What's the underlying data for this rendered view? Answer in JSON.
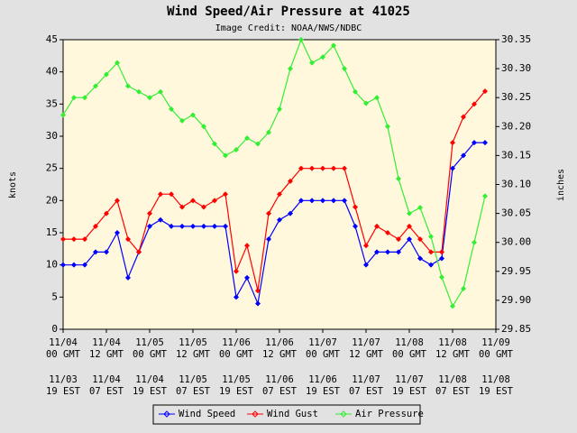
{
  "chart_data": {
    "type": "line",
    "title": "Wind Speed/Air Pressure at 41025",
    "subtitle": "Image Credit: NOAA/NWS/NDBC",
    "ylabel": "knots",
    "y2label": "inches",
    "x": [
      0,
      3,
      6,
      9,
      12,
      15,
      18,
      21,
      24,
      27,
      30,
      33,
      36,
      39,
      42,
      45,
      48,
      51,
      54,
      57,
      60,
      63,
      66,
      69,
      72,
      75,
      78,
      81,
      84,
      87,
      90,
      93,
      96,
      99,
      102,
      105,
      108,
      111,
      114,
      117
    ],
    "xlim": [
      0,
      120
    ],
    "xticks": [
      {
        "value": 0,
        "label": "11/04\n00 GMT",
        "label2": "11/03\n19 EST"
      },
      {
        "value": 12,
        "label": "11/04\n12 GMT",
        "label2": "11/04\n07 EST"
      },
      {
        "value": 24,
        "label": "11/05\n00 GMT",
        "label2": "11/04\n19 EST"
      },
      {
        "value": 36,
        "label": "11/05\n12 GMT",
        "label2": "11/05\n07 EST"
      },
      {
        "value": 48,
        "label": "11/06\n00 GMT",
        "label2": "11/05\n19 EST"
      },
      {
        "value": 60,
        "label": "11/06\n12 GMT",
        "label2": "11/06\n07 EST"
      },
      {
        "value": 72,
        "label": "11/07\n00 GMT",
        "label2": "11/06\n19 EST"
      },
      {
        "value": 84,
        "label": "11/07\n12 GMT",
        "label2": "11/07\n07 EST"
      },
      {
        "value": 96,
        "label": "11/08\n00 GMT",
        "label2": "11/07\n19 EST"
      },
      {
        "value": 108,
        "label": "11/08\n12 GMT",
        "label2": "11/08\n07 EST"
      },
      {
        "value": 120,
        "label": "11/09\n00 GMT",
        "label2": "11/08\n19 EST"
      }
    ],
    "ylim": [
      0,
      45
    ],
    "yticks": [
      0,
      5,
      10,
      15,
      20,
      25,
      30,
      35,
      40,
      45
    ],
    "y2lim": [
      29.85,
      30.35
    ],
    "y2ticks": [
      29.85,
      {
        "value": 29.9,
        "label": "29.90"
      },
      29.95,
      {
        "value": 30.0,
        "label": "30.00"
      },
      30.05,
      {
        "value": 30.1,
        "label": "30.10"
      },
      30.15,
      {
        "value": 30.2,
        "label": "30.20"
      },
      30.25,
      {
        "value": 30.3,
        "label": "30.30"
      },
      30.35
    ],
    "series": [
      {
        "name": "Wind Speed",
        "color": "#0000ff",
        "values": [
          10,
          10,
          10,
          12,
          12,
          15,
          8,
          12,
          16,
          17,
          16,
          16,
          16,
          16,
          16,
          16,
          5,
          8,
          4,
          14,
          17,
          18,
          20,
          20,
          20,
          20,
          20,
          16,
          10,
          12,
          12,
          12,
          14,
          11,
          10,
          11,
          25,
          27,
          29,
          29
        ]
      },
      {
        "name": "Wind Gust",
        "color": "#ff0000",
        "values": [
          14,
          14,
          14,
          16,
          18,
          20,
          14,
          12,
          18,
          21,
          21,
          19,
          20,
          19,
          20,
          21,
          9,
          13,
          6,
          18,
          21,
          23,
          25,
          25,
          25,
          25,
          25,
          19,
          13,
          16,
          15,
          14,
          16,
          14,
          12,
          12,
          29,
          33,
          35,
          37
        ]
      },
      {
        "name": "Air Pressure",
        "color": "#33ee33",
        "axis": "y2",
        "values": [
          30.22,
          30.25,
          30.25,
          30.27,
          30.29,
          30.31,
          30.27,
          30.26,
          30.25,
          30.26,
          30.23,
          30.21,
          30.22,
          30.2,
          30.17,
          30.15,
          30.16,
          30.18,
          30.17,
          30.19,
          30.23,
          30.3,
          30.35,
          30.31,
          30.32,
          30.34,
          30.3,
          30.26,
          30.24,
          30.25,
          30.2,
          30.11,
          30.05,
          30.06,
          30.01,
          29.94,
          29.89,
          29.92,
          30.0,
          30.08
        ]
      }
    ]
  }
}
